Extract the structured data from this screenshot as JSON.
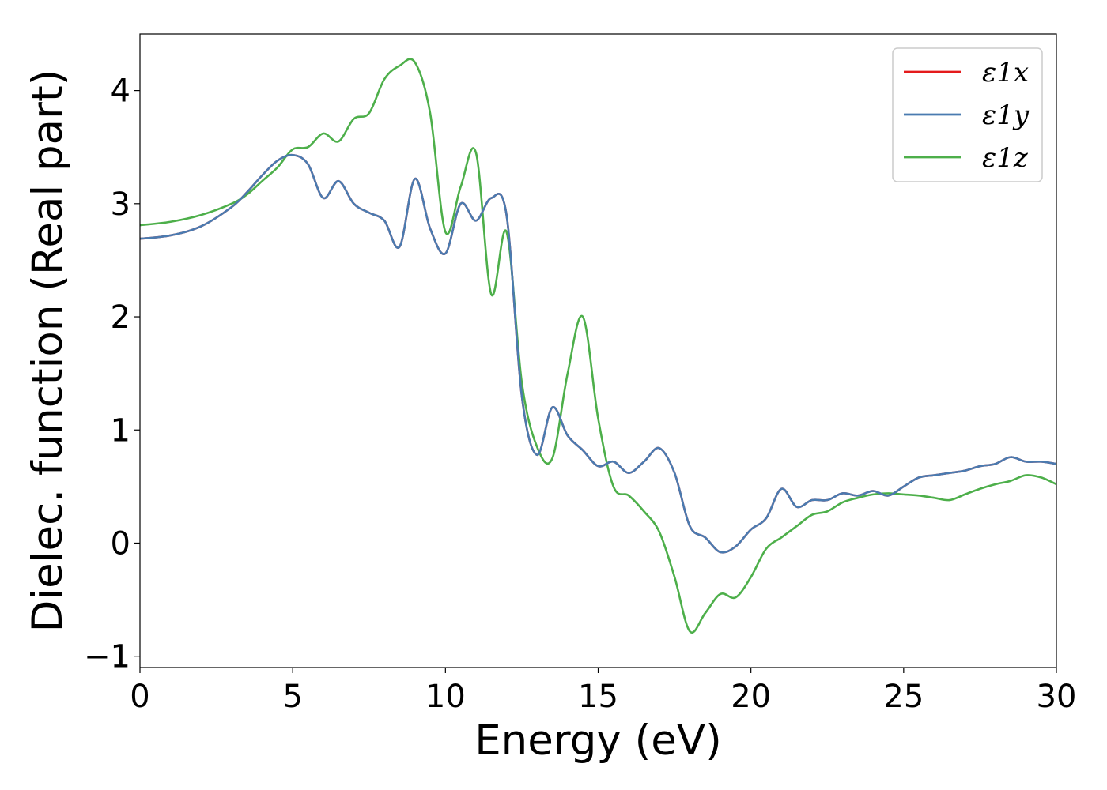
{
  "chart_data": {
    "type": "line",
    "title": "",
    "xlabel": "Energy (eV)",
    "ylabel": "Dielec. function (Real part)",
    "xlim": [
      0,
      30
    ],
    "ylim": [
      -1.1,
      4.5
    ],
    "xticks": [
      0,
      5,
      10,
      15,
      20,
      25,
      30
    ],
    "xtick_labels": [
      "0",
      "5",
      "10",
      "15",
      "20",
      "25",
      "30"
    ],
    "yticks": [
      -1,
      0,
      1,
      2,
      3,
      4
    ],
    "ytick_labels": [
      "−1",
      "0",
      "1",
      "2",
      "3",
      "4"
    ],
    "grid": false,
    "legend_position": "top-right",
    "x": [
      0,
      1,
      2,
      3,
      3.5,
      4,
      4.5,
      5,
      5.5,
      6,
      6.5,
      7,
      7.5,
      8,
      8.5,
      9,
      9.5,
      10,
      10.5,
      11,
      11.5,
      12,
      12.5,
      13,
      13.5,
      14,
      14.5,
      15,
      15.5,
      16,
      16.5,
      17,
      17.5,
      18,
      18.5,
      19,
      19.5,
      20,
      20.5,
      21,
      21.5,
      22,
      22.5,
      23,
      23.5,
      24,
      24.5,
      25,
      25.5,
      26,
      26.5,
      27,
      27.5,
      28,
      28.5,
      29,
      29.5,
      30
    ],
    "series": [
      {
        "name": "ε1x",
        "color": "#e41a1c",
        "values": [
          2.69,
          2.72,
          2.8,
          2.97,
          3.1,
          3.25,
          3.38,
          3.43,
          3.35,
          3.05,
          3.2,
          3.0,
          2.92,
          2.85,
          2.62,
          3.22,
          2.78,
          2.56,
          3.0,
          2.85,
          3.05,
          2.9,
          1.3,
          0.78,
          1.2,
          0.95,
          0.82,
          0.68,
          0.72,
          0.62,
          0.72,
          0.84,
          0.62,
          0.15,
          0.05,
          -0.08,
          -0.03,
          0.12,
          0.22,
          0.48,
          0.32,
          0.38,
          0.38,
          0.44,
          0.42,
          0.46,
          0.42,
          0.5,
          0.58,
          0.6,
          0.62,
          0.64,
          0.68,
          0.7,
          0.76,
          0.72,
          0.72,
          0.7
        ]
      },
      {
        "name": "ε1y",
        "color": "#4a7bb0",
        "values": [
          2.69,
          2.72,
          2.8,
          2.97,
          3.1,
          3.25,
          3.38,
          3.43,
          3.35,
          3.05,
          3.2,
          3.0,
          2.92,
          2.85,
          2.62,
          3.22,
          2.78,
          2.56,
          3.0,
          2.85,
          3.05,
          2.9,
          1.3,
          0.78,
          1.2,
          0.95,
          0.82,
          0.68,
          0.72,
          0.62,
          0.72,
          0.84,
          0.62,
          0.15,
          0.05,
          -0.08,
          -0.03,
          0.12,
          0.22,
          0.48,
          0.32,
          0.38,
          0.38,
          0.44,
          0.42,
          0.46,
          0.42,
          0.5,
          0.58,
          0.6,
          0.62,
          0.64,
          0.68,
          0.7,
          0.76,
          0.72,
          0.72,
          0.7
        ]
      },
      {
        "name": "ε1z",
        "color": "#4daf4a",
        "values": [
          2.81,
          2.84,
          2.9,
          3.0,
          3.08,
          3.2,
          3.32,
          3.48,
          3.5,
          3.62,
          3.55,
          3.75,
          3.8,
          4.1,
          4.22,
          4.25,
          3.8,
          2.75,
          3.15,
          3.45,
          2.2,
          2.75,
          1.42,
          0.85,
          0.75,
          1.5,
          2.0,
          1.1,
          0.5,
          0.42,
          0.28,
          0.1,
          -0.3,
          -0.78,
          -0.62,
          -0.45,
          -0.48,
          -0.3,
          -0.05,
          0.05,
          0.15,
          0.25,
          0.28,
          0.36,
          0.4,
          0.43,
          0.44,
          0.43,
          0.42,
          0.4,
          0.38,
          0.43,
          0.48,
          0.52,
          0.55,
          0.6,
          0.58,
          0.52
        ]
      }
    ]
  }
}
